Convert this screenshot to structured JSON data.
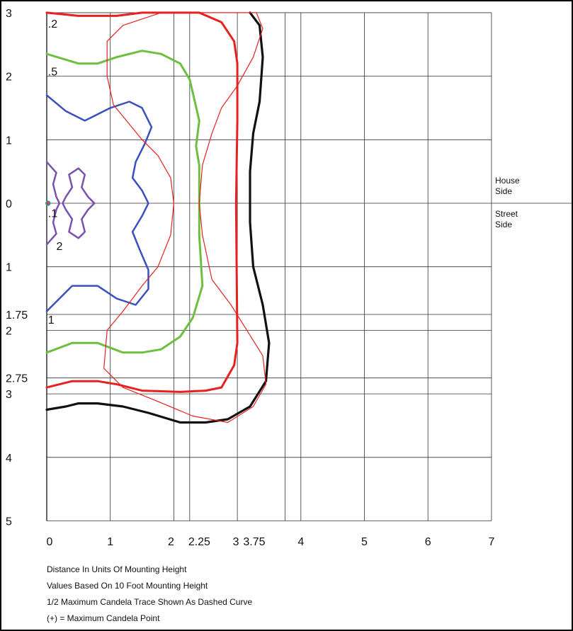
{
  "chart_data": {
    "type": "line",
    "title": "",
    "xlabel": "",
    "ylabel": "",
    "xlim": [
      0,
      7
    ],
    "ylim": [
      -5,
      3
    ],
    "grid": true,
    "x_ticks": [
      {
        "v": 0,
        "label": "0"
      },
      {
        "v": 1,
        "label": "1"
      },
      {
        "v": 2,
        "label": "2"
      },
      {
        "v": 2.25,
        "label": "2.25"
      },
      {
        "v": 3,
        "label": "3"
      },
      {
        "v": 3.75,
        "label": "3.75"
      },
      {
        "v": 4,
        "label": "4"
      },
      {
        "v": 5,
        "label": "5"
      },
      {
        "v": 6,
        "label": "6"
      },
      {
        "v": 7,
        "label": "7"
      }
    ],
    "y_ticks": [
      {
        "v": 3,
        "label": "3"
      },
      {
        "v": 2,
        "label": "2"
      },
      {
        "v": 1,
        "label": "1"
      },
      {
        "v": 0,
        "label": "0"
      },
      {
        "v": -1,
        "label": "1"
      },
      {
        "v": -1.75,
        "label": "1.75"
      },
      {
        "v": -2,
        "label": "2"
      },
      {
        "v": -2.75,
        "label": "2.75"
      },
      {
        "v": -3,
        "label": "3"
      },
      {
        "v": -4,
        "label": "4"
      },
      {
        "v": -5,
        "label": "5"
      }
    ],
    "side_labels": {
      "house": [
        "House",
        "Side"
      ],
      "street": [
        "Street",
        "Side"
      ]
    },
    "notes": [
      "Distance In Units Of Mounting Height",
      "Values Based On 10 Foot Mounting Height",
      "1/2 Maximum Candela Trace Shown As Dashed Curve",
      "(+) = Maximum Candela Point"
    ],
    "series": [
      {
        "name": ".2",
        "color": "#e82020",
        "width": 3,
        "label": {
          "text": ".2",
          "x": 0.02,
          "y": 2.83
        },
        "points": [
          [
            0,
            3
          ],
          [
            0.5,
            2.95
          ],
          [
            1.1,
            2.95
          ],
          [
            1.5,
            3
          ],
          [
            2,
            3
          ],
          [
            2.4,
            3
          ],
          [
            2.75,
            2.85
          ],
          [
            2.95,
            2.55
          ],
          [
            3,
            2.2
          ],
          [
            3,
            1.3
          ],
          [
            2.98,
            0
          ],
          [
            3,
            -2.2
          ],
          [
            2.95,
            -2.55
          ],
          [
            2.75,
            -2.9
          ],
          [
            2.5,
            -2.95
          ],
          [
            2.1,
            -2.97
          ],
          [
            1.5,
            -2.95
          ],
          [
            1.1,
            -2.85
          ],
          [
            0.8,
            -2.8
          ],
          [
            0.4,
            -2.8
          ],
          [
            0,
            -2.9
          ]
        ]
      },
      {
        "name": ".5",
        "color": "#6cc040",
        "width": 3,
        "label": {
          "text": ".5",
          "x": 0.02,
          "y": 2.08
        },
        "points": [
          [
            0,
            2.35
          ],
          [
            0.5,
            2.2
          ],
          [
            0.8,
            2.2
          ],
          [
            1.1,
            2.3
          ],
          [
            1.5,
            2.4
          ],
          [
            1.8,
            2.35
          ],
          [
            2.1,
            2.2
          ],
          [
            2.25,
            1.95
          ],
          [
            2.4,
            1.3
          ],
          [
            2.35,
            0.9
          ],
          [
            2.4,
            0.6
          ],
          [
            2.4,
            -0.5
          ],
          [
            2.45,
            -1.3
          ],
          [
            2.3,
            -1.8
          ],
          [
            2.1,
            -2.1
          ],
          [
            1.8,
            -2.3
          ],
          [
            1.5,
            -2.35
          ],
          [
            1.2,
            -2.35
          ],
          [
            0.8,
            -2.2
          ],
          [
            0.4,
            -2.2
          ],
          [
            0,
            -2.35
          ]
        ]
      },
      {
        "name": "1",
        "color": "#3a50c0",
        "width": 2.5,
        "label": {
          "text": "1",
          "x": 0.02,
          "y": -1.83
        },
        "points": [
          [
            0,
            1.7
          ],
          [
            0.3,
            1.45
          ],
          [
            0.6,
            1.3
          ],
          [
            1.0,
            1.5
          ],
          [
            1.3,
            1.6
          ],
          [
            1.5,
            1.5
          ],
          [
            1.65,
            1.2
          ],
          [
            1.55,
            0.95
          ],
          [
            1.4,
            0.65
          ],
          [
            1.35,
            0.4
          ],
          [
            1.5,
            0.2
          ],
          [
            1.6,
            0
          ],
          [
            1.5,
            -0.2
          ],
          [
            1.35,
            -0.45
          ],
          [
            1.45,
            -0.7
          ],
          [
            1.6,
            -1.05
          ],
          [
            1.6,
            -1.35
          ],
          [
            1.4,
            -1.6
          ],
          [
            1.1,
            -1.5
          ],
          [
            0.8,
            -1.3
          ],
          [
            0.4,
            -1.3
          ],
          [
            0,
            -1.7
          ]
        ]
      },
      {
        "name": "2",
        "color": "#7a50b0",
        "width": 2.5,
        "label": {
          "text": "2",
          "x": 0.15,
          "y": -0.67
        },
        "points": [
          [
            0,
            0.65
          ],
          [
            0.15,
            0.48
          ],
          [
            0.1,
            0.3
          ],
          [
            0.15,
            0.1
          ],
          [
            0.2,
            0
          ],
          [
            0.15,
            -0.1
          ],
          [
            0.1,
            -0.3
          ],
          [
            0.15,
            -0.48
          ],
          [
            0,
            -0.65
          ]
        ]
      },
      {
        "name": "2 inner",
        "color": "#7a50b0",
        "width": 2.5,
        "label": null,
        "points": [
          [
            0.5,
            0.55
          ],
          [
            0.35,
            0.45
          ],
          [
            0.4,
            0.25
          ],
          [
            0.3,
            0.1
          ],
          [
            0.25,
            0
          ],
          [
            0.3,
            -0.1
          ],
          [
            0.4,
            -0.25
          ],
          [
            0.35,
            -0.45
          ],
          [
            0.5,
            -0.55
          ],
          [
            0.6,
            -0.45
          ],
          [
            0.55,
            -0.25
          ],
          [
            0.65,
            -0.1
          ],
          [
            0.75,
            0
          ],
          [
            0.65,
            0.1
          ],
          [
            0.55,
            0.25
          ],
          [
            0.6,
            0.45
          ],
          [
            0.5,
            0.55
          ]
        ]
      },
      {
        "name": ".1",
        "color": "#111111",
        "width": 3.2,
        "label": {
          "text": ".1",
          "x": 0.02,
          "y": -0.15
        },
        "points": [
          [
            3.2,
            3
          ],
          [
            3.35,
            2.8
          ],
          [
            3.4,
            2.3
          ],
          [
            3.35,
            1.6
          ],
          [
            3.25,
            1.1
          ],
          [
            3.2,
            0.5
          ],
          [
            3.2,
            -0.3
          ],
          [
            3.25,
            -1.0
          ],
          [
            3.4,
            -1.6
          ],
          [
            3.5,
            -2.2
          ],
          [
            3.45,
            -2.8
          ],
          [
            3.2,
            -3.2
          ],
          [
            2.85,
            -3.4
          ],
          [
            2.5,
            -3.45
          ],
          [
            2.1,
            -3.45
          ],
          [
            1.6,
            -3.3
          ],
          [
            1.2,
            -3.2
          ],
          [
            0.8,
            -3.15
          ],
          [
            0.5,
            -3.15
          ],
          [
            0.3,
            -3.2
          ],
          [
            0,
            -3.25
          ]
        ]
      },
      {
        "name": "half max trace",
        "color": "#e82020",
        "width": 1.2,
        "label": null,
        "points": [
          [
            0.95,
            2.55
          ],
          [
            0.95,
            2.0
          ],
          [
            1.05,
            1.55
          ],
          [
            1.5,
            1.0
          ],
          [
            1.75,
            0.75
          ],
          [
            1.95,
            0.4
          ],
          [
            2.0,
            0
          ],
          [
            1.95,
            -0.5
          ],
          [
            1.75,
            -1.0
          ],
          [
            1.5,
            -1.3
          ],
          [
            1.2,
            -1.7
          ],
          [
            0.95,
            -2.0
          ],
          [
            0.9,
            -2.6
          ],
          [
            1.2,
            -2.9
          ],
          [
            1.7,
            -3.1
          ],
          [
            2.3,
            -3.35
          ],
          [
            2.85,
            -3.45
          ],
          [
            3.25,
            -3.2
          ],
          [
            3.45,
            -2.85
          ],
          [
            3.4,
            -2.4
          ],
          [
            3.15,
            -2.0
          ],
          [
            2.9,
            -1.6
          ],
          [
            2.6,
            -1.2
          ],
          [
            2.45,
            -0.5
          ],
          [
            2.4,
            0
          ],
          [
            2.45,
            0.6
          ],
          [
            2.6,
            1.1
          ],
          [
            2.75,
            1.5
          ],
          [
            3.0,
            1.85
          ],
          [
            3.25,
            2.3
          ],
          [
            3.4,
            2.75
          ],
          [
            3.3,
            3.0
          ],
          [
            2.4,
            3.0
          ],
          [
            1.8,
            3.0
          ],
          [
            1.2,
            2.8
          ],
          [
            0.95,
            2.55
          ]
        ]
      }
    ],
    "max_point": {
      "x": 0.02,
      "y": 0
    }
  }
}
